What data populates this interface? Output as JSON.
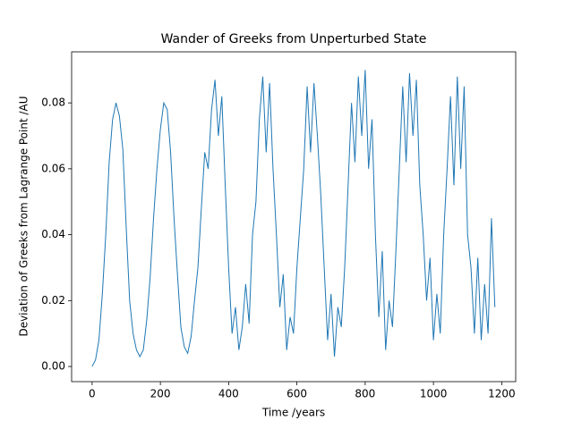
{
  "chart_data": {
    "type": "line",
    "title": "Wander of Greeks from Unperturbed State",
    "xlabel": "Time /years",
    "ylabel": "Deviation of Greeks from Lagrange Point /AU",
    "xlim": [
      -60,
      1241
    ],
    "ylim": [
      -0.0046,
      0.0955
    ],
    "xticks": [
      0,
      200,
      400,
      600,
      800,
      1000,
      1200
    ],
    "yticks": [
      {
        "value": 0,
        "label": "0.00"
      },
      0.02,
      0.04,
      0.06,
      0.08
    ],
    "series": [
      {
        "color": "#1f77b4",
        "x": [
          0,
          10,
          20,
          30,
          40,
          50,
          60,
          70,
          80,
          90,
          100,
          110,
          120,
          130,
          140,
          150,
          160,
          170,
          180,
          190,
          200,
          210,
          220,
          230,
          240,
          250,
          260,
          270,
          280,
          290,
          300,
          310,
          320,
          330,
          340,
          350,
          360,
          370,
          380,
          390,
          400,
          410,
          420,
          430,
          440,
          450,
          460,
          470,
          480,
          490,
          500,
          510,
          520,
          530,
          540,
          550,
          560,
          570,
          580,
          590,
          600,
          610,
          620,
          630,
          640,
          650,
          660,
          670,
          680,
          690,
          700,
          710,
          720,
          730,
          740,
          750,
          760,
          770,
          780,
          790,
          800,
          810,
          820,
          830,
          840,
          850,
          860,
          870,
          880,
          890,
          900,
          910,
          920,
          930,
          940,
          950,
          960,
          970,
          980,
          990,
          1000,
          1010,
          1020,
          1030,
          1040,
          1050,
          1060,
          1070,
          1080,
          1090,
          1100,
          1110,
          1120,
          1130,
          1140,
          1150,
          1160,
          1170,
          1180
        ],
        "values": [
          0.0,
          0.002,
          0.008,
          0.022,
          0.04,
          0.062,
          0.075,
          0.08,
          0.076,
          0.066,
          0.042,
          0.02,
          0.01,
          0.005,
          0.003,
          0.005,
          0.014,
          0.027,
          0.045,
          0.06,
          0.072,
          0.08,
          0.078,
          0.065,
          0.045,
          0.028,
          0.012,
          0.006,
          0.004,
          0.009,
          0.02,
          0.03,
          0.048,
          0.065,
          0.06,
          0.078,
          0.087,
          0.07,
          0.082,
          0.055,
          0.03,
          0.01,
          0.018,
          0.005,
          0.012,
          0.025,
          0.013,
          0.04,
          0.05,
          0.075,
          0.088,
          0.065,
          0.086,
          0.06,
          0.04,
          0.018,
          0.028,
          0.005,
          0.015,
          0.01,
          0.03,
          0.045,
          0.06,
          0.085,
          0.065,
          0.086,
          0.07,
          0.052,
          0.03,
          0.008,
          0.022,
          0.003,
          0.018,
          0.012,
          0.03,
          0.055,
          0.08,
          0.062,
          0.088,
          0.07,
          0.09,
          0.06,
          0.075,
          0.04,
          0.015,
          0.035,
          0.005,
          0.02,
          0.012,
          0.035,
          0.06,
          0.085,
          0.062,
          0.089,
          0.07,
          0.087,
          0.055,
          0.04,
          0.02,
          0.033,
          0.008,
          0.022,
          0.01,
          0.04,
          0.06,
          0.082,
          0.055,
          0.088,
          0.06,
          0.085,
          0.04,
          0.03,
          0.01,
          0.033,
          0.008,
          0.025,
          0.01,
          0.045,
          0.018
        ]
      }
    ]
  }
}
